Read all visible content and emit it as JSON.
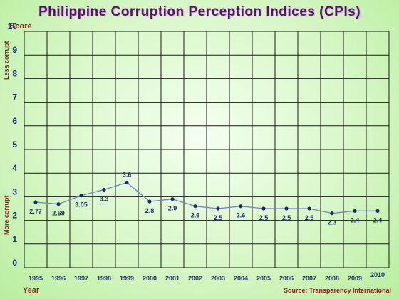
{
  "title": "Philippine Corruption Perception Indices (CPIs)",
  "source": "Source: Transparency International",
  "colors": {
    "line": "#6c86c2",
    "marker": "#1b2a66",
    "text": "#1b2a66",
    "axis_label": "#8b1a1a",
    "grid": "#1a1a1a"
  },
  "chart_data": {
    "type": "line",
    "title": "Philippine Corruption Perception Indices (CPIs)",
    "xlabel": "Year",
    "ylabel": "Score",
    "ylabel_top": "Less corrupt",
    "ylabel_bottom": "More corrupt",
    "ylim": [
      0,
      10
    ],
    "yticks": [
      0,
      1,
      2,
      3,
      4,
      5,
      6,
      7,
      8,
      9,
      10
    ],
    "grid": true,
    "categories": [
      "1995",
      "1996",
      "1997",
      "1998",
      "1999",
      "2000",
      "2001",
      "2002",
      "2003",
      "2004",
      "2005",
      "2006",
      "2007",
      "2008",
      "2009",
      "2010"
    ],
    "series": [
      {
        "values": [
          2.77,
          2.69,
          3.05,
          3.3,
          3.6,
          2.8,
          2.9,
          2.6,
          2.5,
          2.6,
          2.5,
          2.5,
          2.5,
          2.3,
          2.4,
          2.4
        ],
        "labels": [
          "2.77",
          "2.69",
          "3.05",
          "3.3",
          "3.6",
          "2.8",
          "2.9",
          "2.6",
          "2.5",
          "2.6",
          "2.5",
          "2.5",
          "2.5",
          "2.3",
          "2.4",
          "2.4"
        ]
      }
    ]
  }
}
